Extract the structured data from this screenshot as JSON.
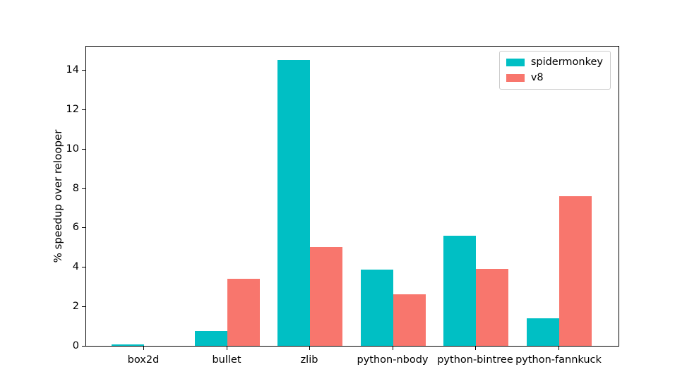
{
  "chart_data": {
    "type": "bar",
    "title": "",
    "xlabel": "",
    "ylabel": "% speedup over relooper",
    "categories": [
      "box2d",
      "bullet",
      "zlib",
      "python-nbody",
      "python-bintree",
      "python-fannkuck"
    ],
    "series": [
      {
        "name": "spidermonkey",
        "color": "#00BFC4",
        "values": [
          0.08,
          0.75,
          14.5,
          3.85,
          5.6,
          1.4
        ]
      },
      {
        "name": "v8",
        "color": "#F8766D",
        "values": [
          0.0,
          3.4,
          5.0,
          2.6,
          3.9,
          7.6
        ]
      }
    ],
    "yticks": [
      0,
      2,
      4,
      6,
      8,
      10,
      12,
      14
    ],
    "ylim": [
      0,
      15.25
    ],
    "grid": false,
    "legend_position": "upper right"
  }
}
